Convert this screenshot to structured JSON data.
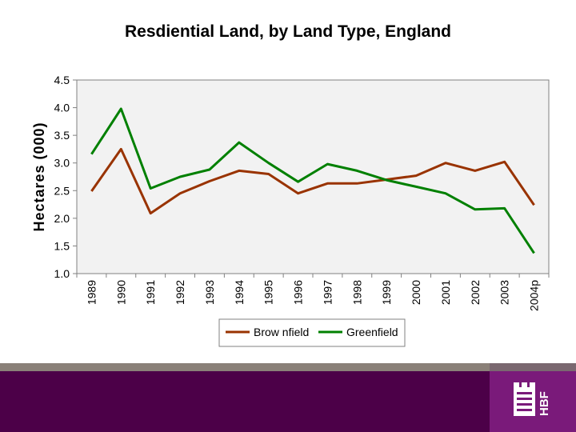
{
  "chart_data": {
    "type": "line",
    "title": "Resdiential Land, by Land Type, England",
    "xlabel": "",
    "ylabel": "Hectares (000)",
    "ylim": [
      1.0,
      4.5
    ],
    "yticks": [
      "1.0",
      "1.5",
      "2.0",
      "2.5",
      "3.0",
      "3.5",
      "4.0",
      "4.5"
    ],
    "categories": [
      "1989",
      "1990",
      "1991",
      "1992",
      "1993",
      "1994",
      "1995",
      "1996",
      "1997",
      "1998",
      "1999",
      "2000",
      "2001",
      "2002",
      "2003",
      "2004p"
    ],
    "series": [
      {
        "name": "Brow nfield",
        "color": "#993300",
        "values": [
          2.49,
          3.25,
          2.09,
          2.45,
          2.67,
          2.86,
          2.8,
          2.45,
          2.63,
          2.63,
          2.7,
          2.77,
          3.0,
          2.86,
          3.02,
          2.24
        ]
      },
      {
        "name": "Greenfield",
        "color": "#008000",
        "values": [
          3.16,
          3.98,
          2.54,
          2.75,
          2.88,
          3.37,
          3.0,
          2.66,
          2.98,
          2.86,
          2.69,
          2.57,
          2.45,
          2.16,
          2.18,
          1.37
        ]
      }
    ],
    "grid": false,
    "legend": "bottom"
  },
  "colors": {
    "footer": "#4c0048",
    "footer_band": "#8a8078",
    "logo_background": "#7a1a7a"
  },
  "logo": {
    "icon": "castle-tower-icon",
    "text": "HBF"
  }
}
